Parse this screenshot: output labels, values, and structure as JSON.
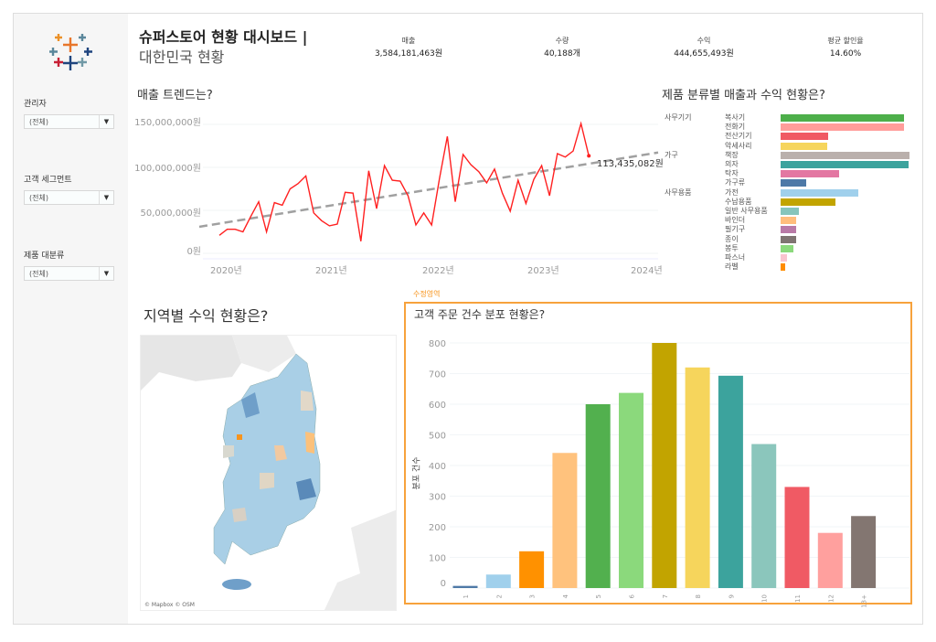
{
  "header": {
    "title": "슈퍼스토어 현황 대시보드 |",
    "subtitle": "대한민국 현황"
  },
  "kpis": [
    {
      "label": "매출",
      "value": "3,584,181,463원"
    },
    {
      "label": "수량",
      "value": "40,188개"
    },
    {
      "label": "수익",
      "value": "444,655,493원"
    },
    {
      "label": "평균 할인율",
      "value": "14.60%"
    }
  ],
  "filters": [
    {
      "label": "관리자",
      "value": "(전체)"
    },
    {
      "label": "고객 세그먼트",
      "value": "(전체)"
    },
    {
      "label": "제품 대분류",
      "value": "(전체)"
    }
  ],
  "map": {
    "title": "지역별 수익 현황은?",
    "attribution": "© Mapbox © OSM"
  },
  "edit_label": "수정영역",
  "colors": {
    "line": "#ff2020",
    "trend": "#a0a0a0",
    "highlight": "#f7941d"
  },
  "chart_data": [
    {
      "type": "line",
      "title": "매출 트렌드는?",
      "ylabel": "",
      "xlabel": "",
      "yticks": [
        "150,000,000원",
        "100,000,000원",
        "50,000,000원",
        "0원"
      ],
      "ytick_values": [
        150000000,
        100000000,
        50000000,
        0
      ],
      "xticks": [
        "2020년",
        "2021년",
        "2022년",
        "2023년",
        "2024년"
      ],
      "ylim": [
        0,
        155000000
      ],
      "x_start": "2020-01",
      "x_end": "2023-12",
      "values_million": [
        21,
        28,
        28,
        25,
        43,
        60,
        25,
        59,
        56,
        75,
        81,
        90,
        47,
        38,
        32,
        34,
        71,
        70,
        14,
        96,
        52,
        102,
        85,
        84,
        67,
        33,
        47,
        33,
        87,
        136,
        60,
        115,
        103,
        95,
        82,
        98,
        70,
        49,
        85,
        58,
        86,
        102,
        67,
        116,
        112,
        119,
        151,
        113.4
      ],
      "trend_million": [
        33,
        113
      ],
      "last_label": "113,435,082원"
    },
    {
      "type": "bar",
      "orientation": "horizontal",
      "title": "제품 분류별 매출과 수익 현황은?",
      "groups": [
        {
          "name": "사무기기",
          "items": [
            {
              "name": "복사기",
              "value": 407,
              "color": "#4daf4a"
            },
            {
              "name": "전화기",
              "value": 405,
              "color": "#ff9d9a"
            },
            {
              "name": "전산기기",
              "value": 157,
              "color": "#f05a64"
            },
            {
              "name": "악세사리",
              "value": 154,
              "color": "#f6d55c"
            }
          ]
        },
        {
          "name": "가구",
          "items": [
            {
              "name": "책장",
              "value": 424,
              "color": "#bab0ac"
            },
            {
              "name": "의자",
              "value": 421,
              "color": "#3ca39d"
            },
            {
              "name": "탁자",
              "value": 193,
              "color": "#e377a2"
            },
            {
              "name": "가구류",
              "value": 85,
              "color": "#4e79a7"
            }
          ]
        },
        {
          "name": "사무용품",
          "items": [
            {
              "name": "가전",
              "value": 257,
              "color": "#a0d0ec"
            },
            {
              "name": "수납용품",
              "value": 180,
              "color": "#c2a400"
            },
            {
              "name": "일반 사무용품",
              "value": 60,
              "color": "#86c5bc"
            },
            {
              "name": "바인더",
              "value": 52,
              "color": "#ffbe7d"
            },
            {
              "name": "필기구",
              "value": 52,
              "color": "#b97aa7"
            },
            {
              "name": "종이",
              "value": 50,
              "color": "#7f7472"
            },
            {
              "name": "봉투",
              "value": 42,
              "color": "#8bd97c"
            },
            {
              "name": "파스너",
              "value": 22,
              "color": "#fac4cf"
            },
            {
              "name": "라벨",
              "value": 16,
              "color": "#ff8c00"
            }
          ]
        }
      ]
    },
    {
      "type": "bar",
      "title": "고객 주문 건수 분포 현황은?",
      "ylabel": "분포 건수",
      "xlabel": "",
      "categories": [
        "1",
        "2",
        "3",
        "4",
        "5",
        "6",
        "7",
        "8",
        "9",
        "10",
        "11",
        "12",
        "13+"
      ],
      "values": [
        7,
        44,
        120,
        441,
        600,
        637,
        800,
        720,
        693,
        470,
        330,
        180,
        235
      ],
      "colors": [
        "#4e79a7",
        "#a0d0ec",
        "#ff9100",
        "#ffc27d",
        "#52b04e",
        "#8bd97c",
        "#c2a400",
        "#f6d55c",
        "#3ca39d",
        "#8bc6bc",
        "#f05a64",
        "#ffa09e",
        "#837671"
      ],
      "yticks": [
        0,
        100,
        200,
        300,
        400,
        500,
        600,
        700,
        800
      ],
      "ylim": [
        0,
        800
      ]
    }
  ]
}
